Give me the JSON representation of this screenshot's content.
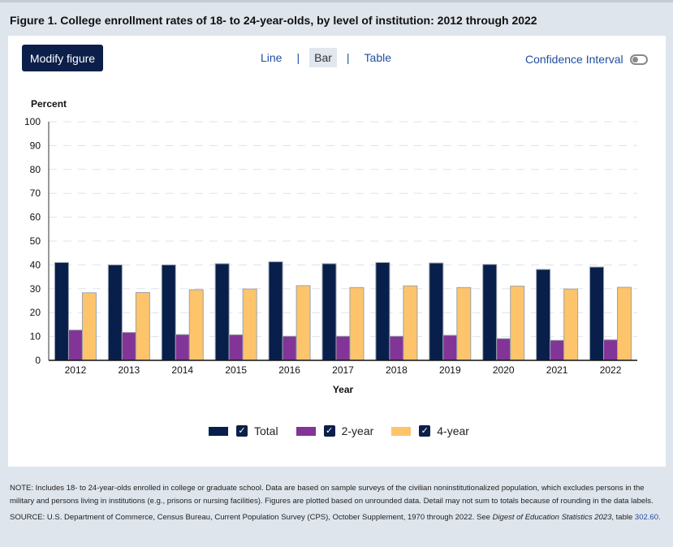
{
  "title": "Figure 1. College enrollment rates of 18- to 24-year-olds, by level of institution: 2012 through 2022",
  "toolbar": {
    "modify_label": "Modify figure",
    "views": [
      "Line",
      "Bar",
      "Table"
    ],
    "selected_view": "Bar",
    "separator": "|",
    "ci_label": "Confidence Interval",
    "ci_enabled": false
  },
  "chart_data": {
    "type": "bar",
    "ylabel": "Percent",
    "xlabel": "Year",
    "ylim": [
      0,
      100
    ],
    "yticks": [
      0,
      10,
      20,
      30,
      40,
      50,
      60,
      70,
      80,
      90,
      100
    ],
    "grid": true,
    "legend_placement": "bottom",
    "categories": [
      "2012",
      "2013",
      "2014",
      "2015",
      "2016",
      "2017",
      "2018",
      "2019",
      "2020",
      "2021",
      "2022"
    ],
    "series": [
      {
        "name": "Total",
        "color": "#081f4b",
        "values": [
          41.0,
          40.0,
          40.0,
          40.5,
          41.3,
          40.5,
          41.0,
          40.8,
          40.2,
          38.1,
          39.1
        ]
      },
      {
        "name": "2-year",
        "color": "#833497",
        "values": [
          12.7,
          11.7,
          10.8,
          10.7,
          10.1,
          10.1,
          10.1,
          10.5,
          9.1,
          8.4,
          8.6
        ]
      },
      {
        "name": "4-year",
        "color": "#fdc46b",
        "values": [
          28.3,
          28.4,
          29.6,
          29.9,
          31.3,
          30.5,
          31.2,
          30.5,
          31.1,
          29.9,
          30.6
        ]
      }
    ]
  },
  "notes": {
    "note": "NOTE: Includes 18- to 24-year-olds enrolled in college or graduate school. Data are based on sample surveys of the civilian noninstitutionalized population, which excludes persons in the military and persons living in institutions (e.g., prisons or nursing facilities). Figures are plotted based on unrounded data. Detail may not sum to totals because of rounding in the data labels.",
    "source_prefix": "SOURCE: U.S. Department of Commerce, Census Bureau, Current Population Survey (CPS), October Supplement, 1970 through 2022. See ",
    "source_italic": "Digest of Education Statistics 2023",
    "source_suffix": ", table ",
    "source_table": "302.60."
  }
}
